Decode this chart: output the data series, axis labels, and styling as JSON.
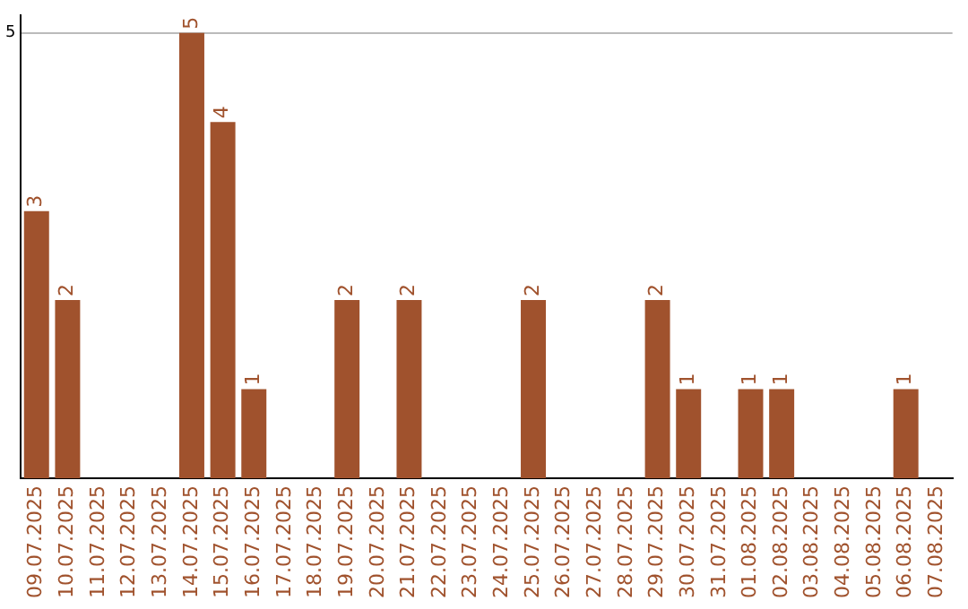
{
  "chart_data": {
    "type": "bar",
    "categories": [
      "09.07.2025",
      "10.07.2025",
      "11.07.2025",
      "12.07.2025",
      "13.07.2025",
      "14.07.2025",
      "15.07.2025",
      "16.07.2025",
      "17.07.2025",
      "18.07.2025",
      "19.07.2025",
      "20.07.2025",
      "21.07.2025",
      "22.07.2025",
      "23.07.2025",
      "24.07.2025",
      "25.07.2025",
      "26.07.2025",
      "27.07.2025",
      "28.07.2025",
      "29.07.2025",
      "30.07.2025",
      "31.07.2025",
      "01.08.2025",
      "02.08.2025",
      "03.08.2025",
      "04.08.2025",
      "05.08.2025",
      "06.08.2025",
      "07.08.2025"
    ],
    "values": [
      3,
      2,
      null,
      null,
      null,
      5,
      4,
      1,
      null,
      null,
      2,
      null,
      2,
      null,
      null,
      null,
      2,
      null,
      null,
      null,
      2,
      1,
      null,
      1,
      1,
      null,
      null,
      null,
      1,
      null
    ],
    "color": "#a0522d",
    "ylim": [
      0,
      5.2
    ],
    "yticks": [
      5
    ],
    "grid": "y",
    "legend": false,
    "data_labels": true
  }
}
